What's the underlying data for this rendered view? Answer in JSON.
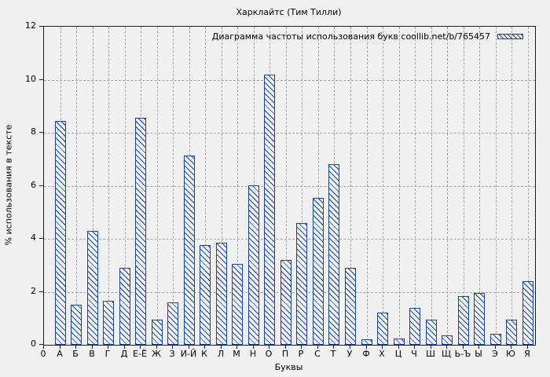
{
  "chart_data": {
    "type": "bar",
    "title": "Харклайтс (Тим Тилли)",
    "legend": "Диаграмма частоты использования букв coollib.net/b/765457",
    "legend_position": "top-right-inside",
    "xlabel": "Буквы",
    "ylabel": "% использования в тексте",
    "origin_label": "0",
    "ylim": [
      0,
      12
    ],
    "yticks": [
      0,
      2,
      4,
      6,
      8,
      10,
      12
    ],
    "grid": true,
    "bar_color": "#1946a0",
    "background_color": "#f0f0f0",
    "categories": [
      "А",
      "Б",
      "В",
      "Г",
      "Д",
      "Е-Ё",
      "Ж",
      "З",
      "И-Й",
      "К",
      "Л",
      "М",
      "Н",
      "О",
      "П",
      "Р",
      "С",
      "Т",
      "У",
      "Ф",
      "Х",
      "Ц",
      "Ч",
      "Ш",
      "Щ",
      "Ь-Ъ",
      "Ы",
      "Э",
      "Ю",
      "Я"
    ],
    "values": [
      8.45,
      1.5,
      4.3,
      1.65,
      2.9,
      8.55,
      0.95,
      1.6,
      7.15,
      3.75,
      3.85,
      3.05,
      6.0,
      10.2,
      3.2,
      4.6,
      5.55,
      6.8,
      2.9,
      0.2,
      1.2,
      0.25,
      1.4,
      0.95,
      0.35,
      1.85,
      1.95,
      0.4,
      0.95,
      2.4
    ]
  }
}
